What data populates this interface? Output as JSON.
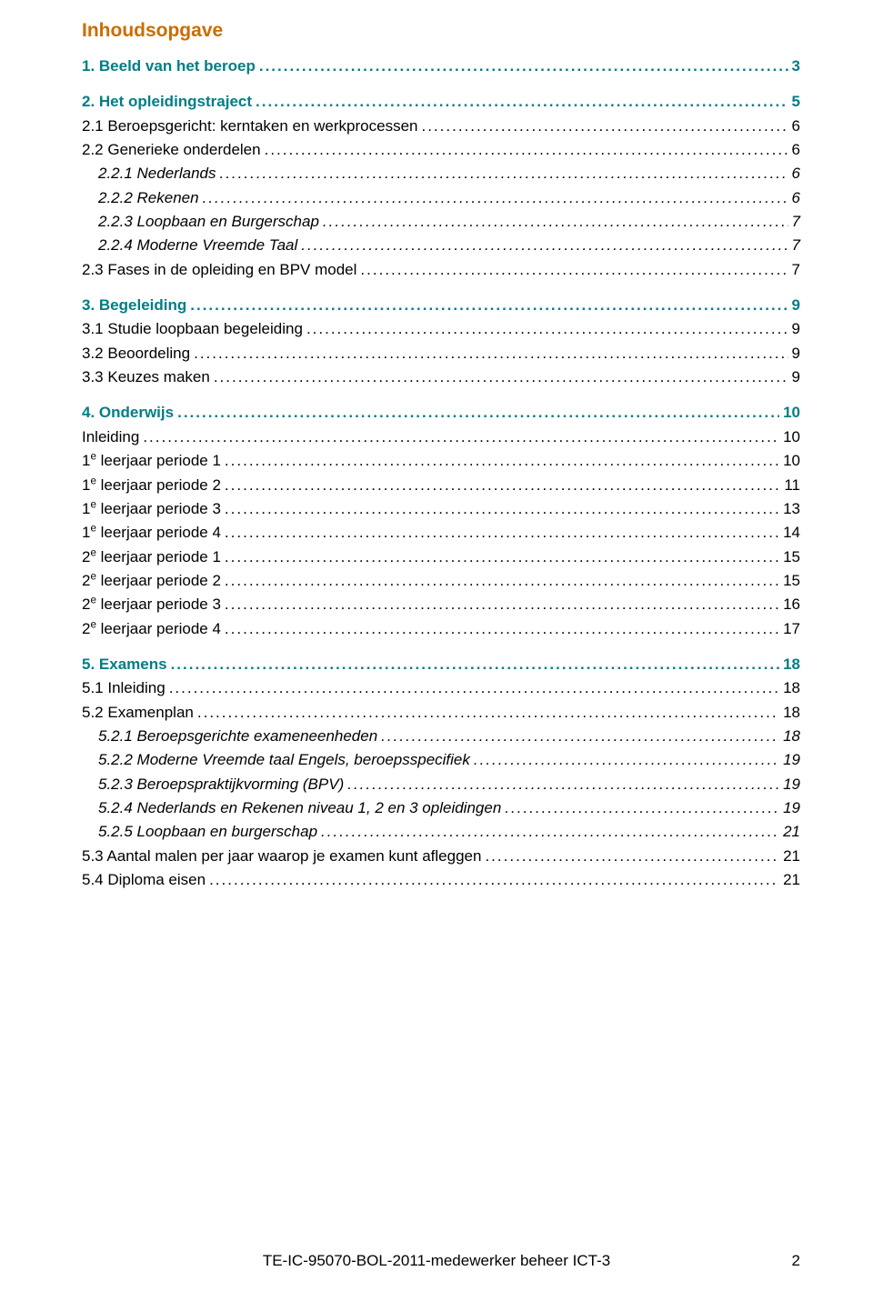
{
  "title": "Inhoudsopgave",
  "colors": {
    "title": "#cb6c00",
    "heading": "#007e84",
    "text": "#000000",
    "background": "#ffffff"
  },
  "footer": {
    "code": "TE-IC-95070-BOL-2011-medewerker beheer ICT-3",
    "page": "2"
  },
  "toc": [
    {
      "level": 1,
      "label": "1. Beeld van het beroep",
      "page": "3"
    },
    {
      "level": 1,
      "label": "2. Het opleidingstraject",
      "page": "5"
    },
    {
      "level": 2,
      "label": "2.1 Beroepsgericht: kerntaken en werkprocessen",
      "page": "6"
    },
    {
      "level": 2,
      "label": "2.2 Generieke onderdelen",
      "page": "6"
    },
    {
      "level": 3,
      "label": "2.2.1 Nederlands",
      "page": "6"
    },
    {
      "level": 3,
      "label": "2.2.2 Rekenen",
      "page": "6"
    },
    {
      "level": 3,
      "label": "2.2.3 Loopbaan en Burgerschap",
      "page": "7"
    },
    {
      "level": 3,
      "label": "2.2.4 Moderne Vreemde Taal",
      "page": "7"
    },
    {
      "level": 2,
      "label": "2.3 Fases in de opleiding en BPV model",
      "page": "7"
    },
    {
      "level": 1,
      "label": "3. Begeleiding",
      "page": "9"
    },
    {
      "level": 2,
      "label": "3.1 Studie loopbaan begeleiding",
      "page": "9"
    },
    {
      "level": 2,
      "label": "3.2 Beoordeling",
      "page": "9"
    },
    {
      "level": 2,
      "label": "3.3 Keuzes maken",
      "page": "9"
    },
    {
      "level": 1,
      "label": "4. Onderwijs",
      "page": "10"
    },
    {
      "level": 2,
      "label": "Inleiding",
      "page": "10"
    },
    {
      "level": 2,
      "sup": true,
      "pre": "1",
      "suf": " leerjaar periode 1",
      "page": "10"
    },
    {
      "level": 2,
      "sup": true,
      "pre": "1",
      "suf": " leerjaar periode 2",
      "page": "11"
    },
    {
      "level": 2,
      "sup": true,
      "pre": "1",
      "suf": " leerjaar periode 3",
      "page": "13"
    },
    {
      "level": 2,
      "sup": true,
      "pre": "1",
      "suf": " leerjaar periode 4",
      "page": "14"
    },
    {
      "level": 2,
      "sup": true,
      "pre": "2",
      "suf": " leerjaar periode 1",
      "page": "15"
    },
    {
      "level": 2,
      "sup": true,
      "pre": "2",
      "suf": " leerjaar periode 2",
      "page": "15"
    },
    {
      "level": 2,
      "sup": true,
      "pre": "2",
      "suf": " leerjaar periode 3",
      "page": "16"
    },
    {
      "level": 2,
      "sup": true,
      "pre": "2",
      "suf": " leerjaar periode 4",
      "page": "17"
    },
    {
      "level": 1,
      "label": "5. Examens",
      "page": "18"
    },
    {
      "level": 2,
      "label": "5.1 Inleiding",
      "page": "18"
    },
    {
      "level": 2,
      "label": "5.2 Examenplan",
      "page": "18"
    },
    {
      "level": 3,
      "label": "5.2.1 Beroepsgerichte exameneenheden",
      "page": "18"
    },
    {
      "level": 3,
      "label": "5.2.2 Moderne Vreemde taal Engels, beroepsspecifiek",
      "page": "19"
    },
    {
      "level": 3,
      "label": "5.2.3 Beroepspraktijkvorming (BPV)",
      "page": "19"
    },
    {
      "level": 3,
      "label": "5.2.4 Nederlands en Rekenen  niveau 1, 2 en 3 opleidingen",
      "page": "19"
    },
    {
      "level": 3,
      "label": "5.2.5 Loopbaan en burgerschap",
      "page": "21"
    },
    {
      "level": 2,
      "label": "5.3 Aantal malen per jaar waarop je examen kunt afleggen",
      "page": "21"
    },
    {
      "level": 2,
      "label": "5.4 Diploma eisen",
      "page": "21"
    }
  ]
}
